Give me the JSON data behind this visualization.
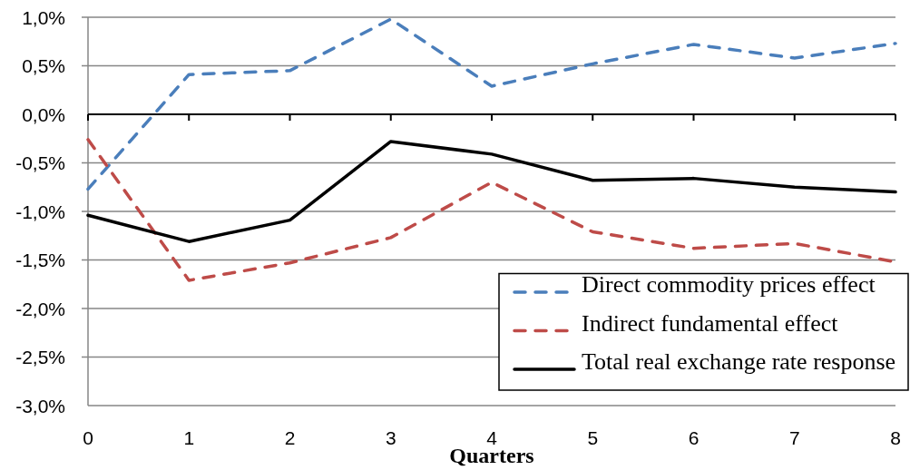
{
  "chart_data": {
    "type": "line",
    "xlabel": "Quarters",
    "x": [
      0,
      1,
      2,
      3,
      4,
      5,
      6,
      7,
      8
    ],
    "xlim": [
      0,
      8
    ],
    "xticks": [
      0,
      1,
      2,
      3,
      4,
      5,
      6,
      7,
      8
    ],
    "ylim": [
      -3,
      1
    ],
    "yticks": [
      {
        "value": -3,
        "label": "-3,0%"
      },
      {
        "value": -2.5,
        "label": "-2,5%"
      },
      {
        "value": -2,
        "label": "-2,0%"
      },
      {
        "value": -1.5,
        "label": "-1,5%"
      },
      {
        "value": -1,
        "label": "-1,0%"
      },
      {
        "value": -0.5,
        "label": "-0,5%"
      },
      {
        "value": 0,
        "label": "0,0%"
      },
      {
        "value": 0.5,
        "label": "0,5%"
      },
      {
        "value": 1,
        "label": "1,0%"
      }
    ],
    "grid": "y",
    "legend": "bottom right",
    "series": [
      {
        "name": "Direct commodity prices effect",
        "color": "#4a7ebb",
        "line_style": "dashed",
        "values": [
          -0.77,
          0.41,
          0.45,
          0.98,
          0.29,
          0.52,
          0.72,
          0.58,
          0.73
        ]
      },
      {
        "name": "Indirect fundamental effect",
        "color": "#be4b48",
        "line_style": "dashed",
        "values": [
          -0.26,
          -1.71,
          -1.53,
          -1.27,
          -0.7,
          -1.21,
          -1.38,
          -1.33,
          -1.52
        ]
      },
      {
        "name": "Total real exchange rate response",
        "color": "#000000",
        "line_style": "solid",
        "values": [
          -1.04,
          -1.31,
          -1.09,
          -0.28,
          -0.41,
          -0.68,
          -0.66,
          -0.75,
          -0.8
        ]
      }
    ]
  }
}
